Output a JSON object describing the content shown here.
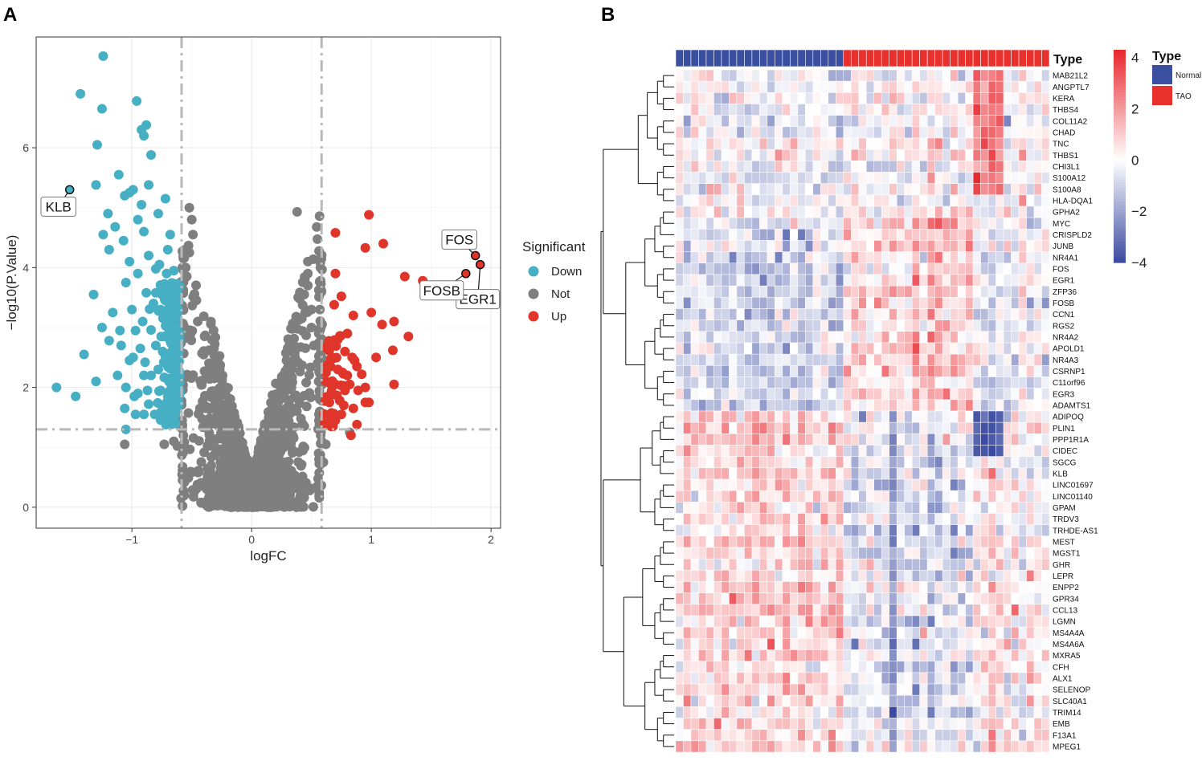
{
  "panels": {
    "a_label": "A",
    "b_label": "B"
  },
  "colors": {
    "down": "#46AFC3",
    "not": "#7F7F7F",
    "up": "#E0352B",
    "normal": "#3B4FA0",
    "tao": "#E8302D",
    "heat_low": "#3A4AA0",
    "heat_mid": "#FFFFFF",
    "heat_high": "#E8262D",
    "threshold_line": "#B9B9B9",
    "grid": "#EBEBEB"
  },
  "chart_data": [
    {
      "type": "scatter",
      "name": "volcano",
      "title": "",
      "xlabel": "logFC",
      "ylabel": "−log10(P.Value)",
      "xlim": [
        -1.8,
        2.08
      ],
      "ylim": [
        -0.35,
        7.85
      ],
      "x_ticks": [
        -1,
        0,
        1,
        2
      ],
      "x_tick_labels": [
        "−1",
        "0",
        "1",
        "2"
      ],
      "y_ticks": [
        0,
        2,
        4,
        6
      ],
      "y_tick_labels": [
        "0",
        "2",
        "4",
        "6"
      ],
      "thresholds": {
        "logFC": [
          -0.585,
          0.585
        ],
        "neg_log10_p": 1.3
      },
      "legend": {
        "title": "Significant",
        "entries": [
          {
            "label": "Down",
            "group": "down"
          },
          {
            "label": "Not",
            "group": "not"
          },
          {
            "label": "Up",
            "group": "up"
          }
        ]
      },
      "labeled_genes": [
        {
          "gene": "KLB",
          "x": -1.52,
          "y": 5.3
        },
        {
          "gene": "FOS",
          "x": 1.87,
          "y": 4.2
        },
        {
          "gene": "EGR1",
          "x": 1.91,
          "y": 4.05
        },
        {
          "gene": "FOSB",
          "x": 1.79,
          "y": 3.9
        }
      ],
      "down_points": [
        [
          -1.24,
          7.53
        ],
        [
          -1.43,
          6.9
        ],
        [
          -1.29,
          6.05
        ],
        [
          -1.25,
          6.65
        ],
        [
          -0.96,
          6.78
        ],
        [
          -0.92,
          6.3
        ],
        [
          -0.88,
          6.38
        ],
        [
          -0.9,
          6.2
        ],
        [
          -0.84,
          5.88
        ],
        [
          -1.11,
          5.55
        ],
        [
          -1.3,
          5.38
        ],
        [
          -1.06,
          5.2
        ],
        [
          -1.02,
          5.25
        ],
        [
          -0.99,
          5.3
        ],
        [
          -0.86,
          5.38
        ],
        [
          -0.92,
          5.05
        ],
        [
          -0.72,
          5.15
        ],
        [
          -0.78,
          4.9
        ],
        [
          -1.2,
          4.9
        ],
        [
          -1.14,
          4.68
        ],
        [
          -1.24,
          4.55
        ],
        [
          -1.07,
          4.45
        ],
        [
          -0.95,
          4.8
        ],
        [
          -0.9,
          4.6
        ],
        [
          -1.19,
          4.3
        ],
        [
          -1.02,
          4.1
        ],
        [
          -0.86,
          4.2
        ],
        [
          -0.7,
          4.3
        ],
        [
          -0.8,
          3.98
        ],
        [
          -0.95,
          3.9
        ],
        [
          -1.05,
          3.75
        ],
        [
          -0.73,
          3.72
        ],
        [
          -0.88,
          3.58
        ],
        [
          -1.32,
          3.55
        ],
        [
          -1.16,
          3.25
        ],
        [
          -1.0,
          3.3
        ],
        [
          -0.91,
          3.1
        ],
        [
          -0.84,
          2.96
        ],
        [
          -1.25,
          3.0
        ],
        [
          -1.19,
          2.78
        ],
        [
          -1.09,
          2.7
        ],
        [
          -0.99,
          2.5
        ],
        [
          -0.89,
          2.42
        ],
        [
          -1.12,
          2.2
        ],
        [
          -1.05,
          2.0
        ],
        [
          -0.95,
          1.9
        ],
        [
          -0.86,
          1.72
        ],
        [
          -0.81,
          1.55
        ],
        [
          -0.97,
          1.55
        ],
        [
          -1.3,
          2.1
        ],
        [
          -1.47,
          1.85
        ],
        [
          -1.63,
          2.0
        ],
        [
          -1.06,
          1.65
        ],
        [
          -0.9,
          1.55
        ],
        [
          -1.05,
          1.3
        ],
        [
          -1.4,
          2.55
        ],
        [
          -0.76,
          3.3
        ],
        [
          -0.8,
          2.7
        ],
        [
          -0.78,
          2.3
        ],
        [
          -0.76,
          1.95
        ],
        [
          -0.75,
          1.7
        ],
        [
          -0.74,
          1.5
        ],
        [
          -0.73,
          2.85
        ],
        [
          -0.72,
          2.55
        ],
        [
          -0.71,
          2.15
        ],
        [
          -0.7,
          1.85
        ],
        [
          -0.69,
          1.6
        ],
        [
          -0.68,
          1.45
        ],
        [
          -0.69,
          3.05
        ],
        [
          -0.68,
          2.35
        ],
        [
          -0.67,
          2.0
        ],
        [
          -0.66,
          1.75
        ],
        [
          -0.66,
          3.5
        ],
        [
          -0.65,
          1.55
        ],
        [
          -0.82,
          3.4
        ],
        [
          -0.84,
          2.2
        ],
        [
          -0.87,
          1.95
        ],
        [
          -0.93,
          2.65
        ],
        [
          -0.9,
          2.2
        ],
        [
          -0.97,
          2.95
        ],
        [
          -1.02,
          2.45
        ],
        [
          -0.98,
          1.85
        ],
        [
          -1.1,
          2.95
        ],
        [
          -0.77,
          4.05
        ],
        [
          -0.75,
          3.55
        ],
        [
          -0.63,
          2.85
        ],
        [
          -0.62,
          2.2
        ],
        [
          -0.61,
          1.75
        ],
        [
          -0.64,
          2.55
        ],
        [
          -0.63,
          3.2
        ],
        [
          -0.71,
          3.9
        ],
        [
          -0.68,
          4.55
        ],
        [
          -0.65,
          3.95
        ]
      ],
      "up_points": [
        [
          0.98,
          4.88
        ],
        [
          0.7,
          4.58
        ],
        [
          0.95,
          4.33
        ],
        [
          1.1,
          4.4
        ],
        [
          1.28,
          3.85
        ],
        [
          1.43,
          3.78
        ],
        [
          0.7,
          3.9
        ],
        [
          0.75,
          3.52
        ],
        [
          0.69,
          3.38
        ],
        [
          1.0,
          3.25
        ],
        [
          1.09,
          3.05
        ],
        [
          1.19,
          3.1
        ],
        [
          0.85,
          3.2
        ],
        [
          0.8,
          2.9
        ],
        [
          1.31,
          2.85
        ],
        [
          1.18,
          2.62
        ],
        [
          0.78,
          2.6
        ],
        [
          0.84,
          2.5
        ],
        [
          0.88,
          2.35
        ],
        [
          1.04,
          2.5
        ],
        [
          0.92,
          2.22
        ],
        [
          0.76,
          2.25
        ],
        [
          0.7,
          2.05
        ],
        [
          0.67,
          1.9
        ],
        [
          0.82,
          2.05
        ],
        [
          1.19,
          2.05
        ],
        [
          0.95,
          1.75
        ],
        [
          0.98,
          1.75
        ],
        [
          0.85,
          1.65
        ],
        [
          0.75,
          1.55
        ],
        [
          0.88,
          1.38
        ],
        [
          0.83,
          1.2
        ],
        [
          0.7,
          1.45
        ],
        [
          0.65,
          1.75
        ],
        [
          0.66,
          2.35
        ],
        [
          0.63,
          2.65
        ],
        [
          0.72,
          2.8
        ],
        [
          0.68,
          1.35
        ],
        [
          0.95,
          2.0
        ],
        [
          0.89,
          1.95
        ],
        [
          0.78,
          1.95
        ],
        [
          0.66,
          1.5
        ],
        [
          0.61,
          1.4
        ],
        [
          0.62,
          2.1
        ],
        [
          0.72,
          2.3
        ],
        [
          0.8,
          2.2
        ],
        [
          0.86,
          2.45
        ],
        [
          0.77,
          1.7
        ]
      ],
      "not_points": [
        [
          0.38,
          4.93
        ],
        [
          0.47,
          4.1
        ],
        [
          0.47,
          3.9
        ],
        [
          0.47,
          3.7
        ],
        [
          0.42,
          3.15
        ],
        [
          0.5,
          3.3
        ],
        [
          0.5,
          3.0
        ],
        [
          0.52,
          2.7
        ],
        [
          0.55,
          2.4
        ],
        [
          0.56,
          2.1
        ],
        [
          0.57,
          1.8
        ],
        [
          0.58,
          1.55
        ],
        [
          -0.52,
          5.0
        ],
        [
          -0.5,
          4.8
        ],
        [
          -0.49,
          4.55
        ],
        [
          -0.52,
          4.25
        ],
        [
          -0.55,
          4.0
        ],
        [
          -0.58,
          1.45
        ],
        [
          -0.57,
          1.2
        ],
        [
          -0.59,
          2.2
        ],
        [
          -0.73,
          1.05
        ],
        [
          -1.06,
          1.05
        ],
        [
          -0.65,
          1.1
        ],
        [
          -0.45,
          3.1
        ],
        [
          0.58,
          3.6
        ],
        [
          0.6,
          0.75
        ],
        [
          0.62,
          1.05
        ],
        [
          0.82,
          1.25
        ],
        [
          0.56,
          0.9
        ],
        [
          0.58,
          1.25
        ],
        [
          -0.62,
          1.02
        ],
        [
          0.44,
          3.55
        ]
      ],
      "not_cloud_count": 1400
    },
    {
      "type": "heatmap",
      "name": "heatmap",
      "color_scale": {
        "min": -4,
        "max": 4.3,
        "ticks": [
          4,
          2,
          0,
          -2,
          -4
        ],
        "tick_labels": [
          "4",
          "2",
          "0",
          "−2",
          "−4"
        ]
      },
      "annotation": {
        "title": "Type",
        "groups": [
          {
            "label": "Normal",
            "count": 22,
            "color": "#3B4FA0"
          },
          {
            "label": "TAO",
            "count": 27,
            "color": "#E8302D"
          }
        ]
      },
      "rows": [
        "MAB21L2",
        "ANGPTL7",
        "KERA",
        "THBS4",
        "COL11A2",
        "CHAD",
        "TNC",
        "THBS1",
        "CHI3L1",
        "S100A12",
        "S100A8",
        "HLA-DQA1",
        "GPHA2",
        "MYC",
        "CRISPLD2",
        "JUNB",
        "NR4A1",
        "FOS",
        "EGR1",
        "ZFP36",
        "FOSB",
        "CCN1",
        "RGS2",
        "NR4A2",
        "APOLD1",
        "NR4A3",
        "CSRNP1",
        "C11orf96",
        "EGR3",
        "ADAMTS1",
        "ADIPOQ",
        "PLIN1",
        "PPP1R1A",
        "CIDEC",
        "SGCG",
        "KLB",
        "LINC01697",
        "LINC01140",
        "GPAM",
        "TRDV3",
        "TRHDE-AS1",
        "MEST",
        "MGST1",
        "GHR",
        "LEPR",
        "ENPP2",
        "GPR34",
        "CCL13",
        "LGMN",
        "MS4A4A",
        "MS4A6A",
        "MXRA5",
        "CFH",
        "ALX1",
        "SELENOP",
        "SLC40A1",
        "TRIM14",
        "EMB",
        "F13A1",
        "MPEG1"
      ],
      "n_columns": 49,
      "patterns": {
        "block_a": {
          "rows": [
            0,
            12
          ],
          "means": {
            "normal": -0.2,
            "tao_left": 0.1,
            "tao_mid": 0.2,
            "tao_right": 0.0
          },
          "hot": {
            "rows": [
              0,
              10
            ],
            "cols": [
              39,
              42
            ],
            "value": 2.8
          }
        },
        "block_b": {
          "rows": [
            13,
            29
          ],
          "means": {
            "normal": -0.9,
            "tao_left": 0.7,
            "tao_mid": 1.2,
            "tao_right": -0.2
          }
        },
        "block_c": {
          "rows": [
            30,
            59
          ],
          "means": {
            "normal": 0.9,
            "tao_left": -0.6,
            "tao_mid": -0.7,
            "tao_right": 0.1
          },
          "cold": {
            "rows": [
              30,
              33
            ],
            "cols": [
              39,
              42
            ],
            "value": -3.6
          }
        }
      }
    }
  ]
}
